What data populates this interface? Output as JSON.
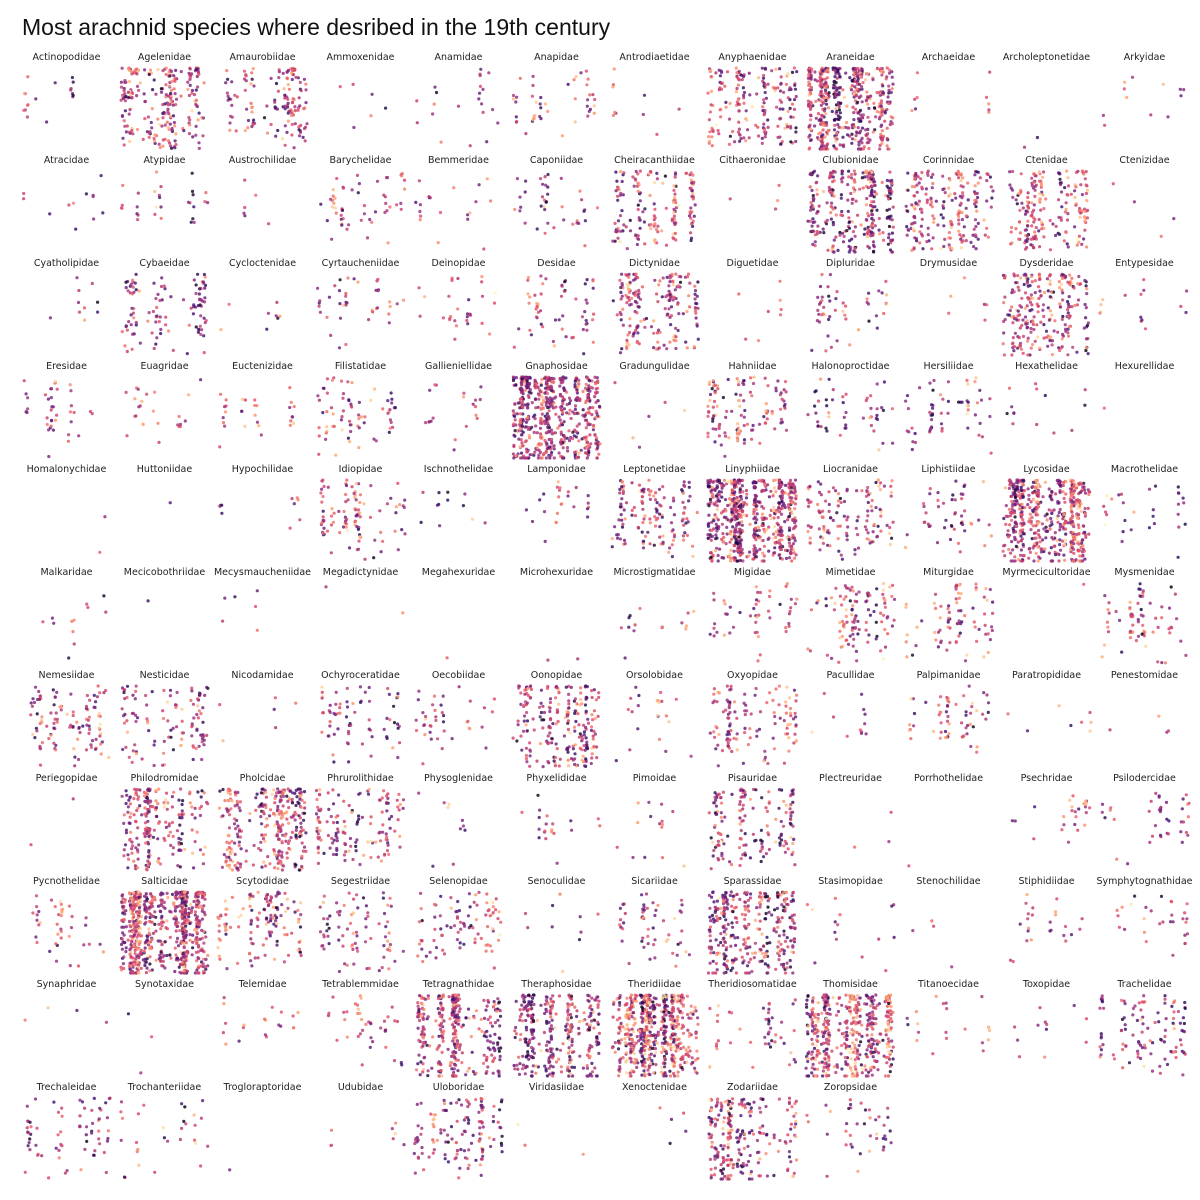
{
  "title": "Most arachnid species where desribed in the 19th century",
  "chart_data": {
    "type": "scatter",
    "title": "Most arachnid species where desribed in the 19th century",
    "colormap": [
      "#000004",
      "#3b0f70",
      "#8c2981",
      "#de4968",
      "#fe9f6d",
      "#fcfdbf"
    ],
    "panels": [
      {
        "name": "Actinopodidae",
        "n": 18
      },
      {
        "name": "Agelenidae",
        "n": 230
      },
      {
        "name": "Amaurobiidae",
        "n": 140
      },
      {
        "name": "Ammoxenidae",
        "n": 6
      },
      {
        "name": "Anamidae",
        "n": 22
      },
      {
        "name": "Anapidae",
        "n": 45
      },
      {
        "name": "Antrodiaetidae",
        "n": 10
      },
      {
        "name": "Anyphaenidae",
        "n": 190
      },
      {
        "name": "Araneidae",
        "n": 520
      },
      {
        "name": "Archaeidae",
        "n": 10
      },
      {
        "name": "Archoleptonetidae",
        "n": 2
      },
      {
        "name": "Arkyidae",
        "n": 12
      },
      {
        "name": "Atracidae",
        "n": 12
      },
      {
        "name": "Atypidae",
        "n": 30
      },
      {
        "name": "Austrochilidae",
        "n": 6
      },
      {
        "name": "Barychelidae",
        "n": 55
      },
      {
        "name": "Bemmeridae",
        "n": 20
      },
      {
        "name": "Caponiidae",
        "n": 40
      },
      {
        "name": "Cheiracanthiidae",
        "n": 160
      },
      {
        "name": "Cithaeronidae",
        "n": 4
      },
      {
        "name": "Clubionidae",
        "n": 300
      },
      {
        "name": "Corinnidae",
        "n": 210
      },
      {
        "name": "Ctenidae",
        "n": 200
      },
      {
        "name": "Ctenizidae",
        "n": 4
      },
      {
        "name": "Cyatholipidae",
        "n": 10
      },
      {
        "name": "Cybaeidae",
        "n": 110
      },
      {
        "name": "Cycloctenidae",
        "n": 8
      },
      {
        "name": "Cyrtaucheniidae",
        "n": 40
      },
      {
        "name": "Deinopidae",
        "n": 30
      },
      {
        "name": "Desidae",
        "n": 60
      },
      {
        "name": "Dictynidae",
        "n": 190
      },
      {
        "name": "Diguetidae",
        "n": 8
      },
      {
        "name": "Dipluridae",
        "n": 50
      },
      {
        "name": "Drymusidae",
        "n": 6
      },
      {
        "name": "Dysderidae",
        "n": 250
      },
      {
        "name": "Entypesidae",
        "n": 15
      },
      {
        "name": "Eresidae",
        "n": 40
      },
      {
        "name": "Euagridae",
        "n": 25
      },
      {
        "name": "Euctenizidae",
        "n": 30
      },
      {
        "name": "Filistatidae",
        "n": 70
      },
      {
        "name": "Gallieniellidae",
        "n": 20
      },
      {
        "name": "Gnaphosidae",
        "n": 600
      },
      {
        "name": "Gradungulidae",
        "n": 6
      },
      {
        "name": "Hahniidae",
        "n": 120
      },
      {
        "name": "Halonoproctidae",
        "n": 50
      },
      {
        "name": "Hersiliidae",
        "n": 60
      },
      {
        "name": "Hexathelidae",
        "n": 14
      },
      {
        "name": "Hexurellidae",
        "n": 1
      },
      {
        "name": "Homalonychidae",
        "n": 2
      },
      {
        "name": "Huttoniidae",
        "n": 1
      },
      {
        "name": "Hypochilidae",
        "n": 10
      },
      {
        "name": "Idiopidae",
        "n": 100
      },
      {
        "name": "Ischnothelidae",
        "n": 12
      },
      {
        "name": "Lamponidae",
        "n": 25
      },
      {
        "name": "Leptonetidae",
        "n": 140
      },
      {
        "name": "Linyphiidae",
        "n": 650
      },
      {
        "name": "Liocranidae",
        "n": 130
      },
      {
        "name": "Liphistiidae",
        "n": 50
      },
      {
        "name": "Lycosidae",
        "n": 550
      },
      {
        "name": "Macrothelidae",
        "n": 30
      },
      {
        "name": "Malkaridae",
        "n": 12
      },
      {
        "name": "Mecicobothriidae",
        "n": 1
      },
      {
        "name": "Mecysmaucheniidae",
        "n": 6
      },
      {
        "name": "Megadictynidae",
        "n": 2
      },
      {
        "name": "Megahexuridae",
        "n": 1
      },
      {
        "name": "Microhexuridae",
        "n": 2
      },
      {
        "name": "Microstigmatidae",
        "n": 15
      },
      {
        "name": "Migidae",
        "n": 50
      },
      {
        "name": "Mimetidae",
        "n": 110
      },
      {
        "name": "Miturgidae",
        "n": 80
      },
      {
        "name": "Myrmecicultoridae",
        "n": 1
      },
      {
        "name": "Mysmenidae",
        "n": 70
      },
      {
        "name": "Nemesiidae",
        "n": 110
      },
      {
        "name": "Nesticidae",
        "n": 110
      },
      {
        "name": "Nicodamidae",
        "n": 6
      },
      {
        "name": "Ochyroceratidae",
        "n": 70
      },
      {
        "name": "Oecobiidae",
        "n": 40
      },
      {
        "name": "Oonopidae",
        "n": 230
      },
      {
        "name": "Orsolobidae",
        "n": 22
      },
      {
        "name": "Oxyopidae",
        "n": 120
      },
      {
        "name": "Pacullidae",
        "n": 12
      },
      {
        "name": "Palpimanidae",
        "n": 60
      },
      {
        "name": "Paratropididae",
        "n": 8
      },
      {
        "name": "Penestomidae",
        "n": 4
      },
      {
        "name": "Periegopidae",
        "n": 2
      },
      {
        "name": "Philodromidae",
        "n": 220
      },
      {
        "name": "Pholcidae",
        "n": 300
      },
      {
        "name": "Phrurolithidae",
        "n": 140
      },
      {
        "name": "Physoglenidae",
        "n": 10
      },
      {
        "name": "Phyxelididae",
        "n": 20
      },
      {
        "name": "Pimoidae",
        "n": 15
      },
      {
        "name": "Pisauridae",
        "n": 160
      },
      {
        "name": "Plectreuridae",
        "n": 3
      },
      {
        "name": "Porrhothelidae",
        "n": 1
      },
      {
        "name": "Psechridae",
        "n": 25
      },
      {
        "name": "Psilodercidae",
        "n": 40
      },
      {
        "name": "Pycnothelidae",
        "n": 40
      },
      {
        "name": "Salticidae",
        "n": 700
      },
      {
        "name": "Scytodidae",
        "n": 130
      },
      {
        "name": "Segestriidae",
        "n": 80
      },
      {
        "name": "Selenopidae",
        "n": 90
      },
      {
        "name": "Senoculidae",
        "n": 10
      },
      {
        "name": "Sicariidae",
        "n": 55
      },
      {
        "name": "Sparassidae",
        "n": 330
      },
      {
        "name": "Stasimopidae",
        "n": 15
      },
      {
        "name": "Stenochilidae",
        "n": 4
      },
      {
        "name": "Stiphidiidae",
        "n": 25
      },
      {
        "name": "Symphytognathidae",
        "n": 30
      },
      {
        "name": "Synaphridae",
        "n": 4
      },
      {
        "name": "Synotaxidae",
        "n": 3
      },
      {
        "name": "Telemidae",
        "n": 20
      },
      {
        "name": "Tetrablemmidae",
        "n": 40
      },
      {
        "name": "Tetragnathidae",
        "n": 330
      },
      {
        "name": "Theraphosidae",
        "n": 330
      },
      {
        "name": "Theridiidae",
        "n": 600
      },
      {
        "name": "Theridiosomatidae",
        "n": 45
      },
      {
        "name": "Thomisidae",
        "n": 480
      },
      {
        "name": "Titanoecidae",
        "n": 20
      },
      {
        "name": "Toxopidae",
        "n": 12
      },
      {
        "name": "Trachelidae",
        "n": 110
      },
      {
        "name": "Trechaleidae",
        "n": 70
      },
      {
        "name": "Trochanteriidae",
        "n": 30
      },
      {
        "name": "Trogloraptoridae",
        "n": 1
      },
      {
        "name": "Udubidae",
        "n": 8
      },
      {
        "name": "Uloboridae",
        "n": 130
      },
      {
        "name": "Viridasiidae",
        "n": 3
      },
      {
        "name": "Xenoctenidae",
        "n": 5
      },
      {
        "name": "Zodariidae",
        "n": 240
      },
      {
        "name": "Zoropsidae",
        "n": 40
      }
    ]
  }
}
